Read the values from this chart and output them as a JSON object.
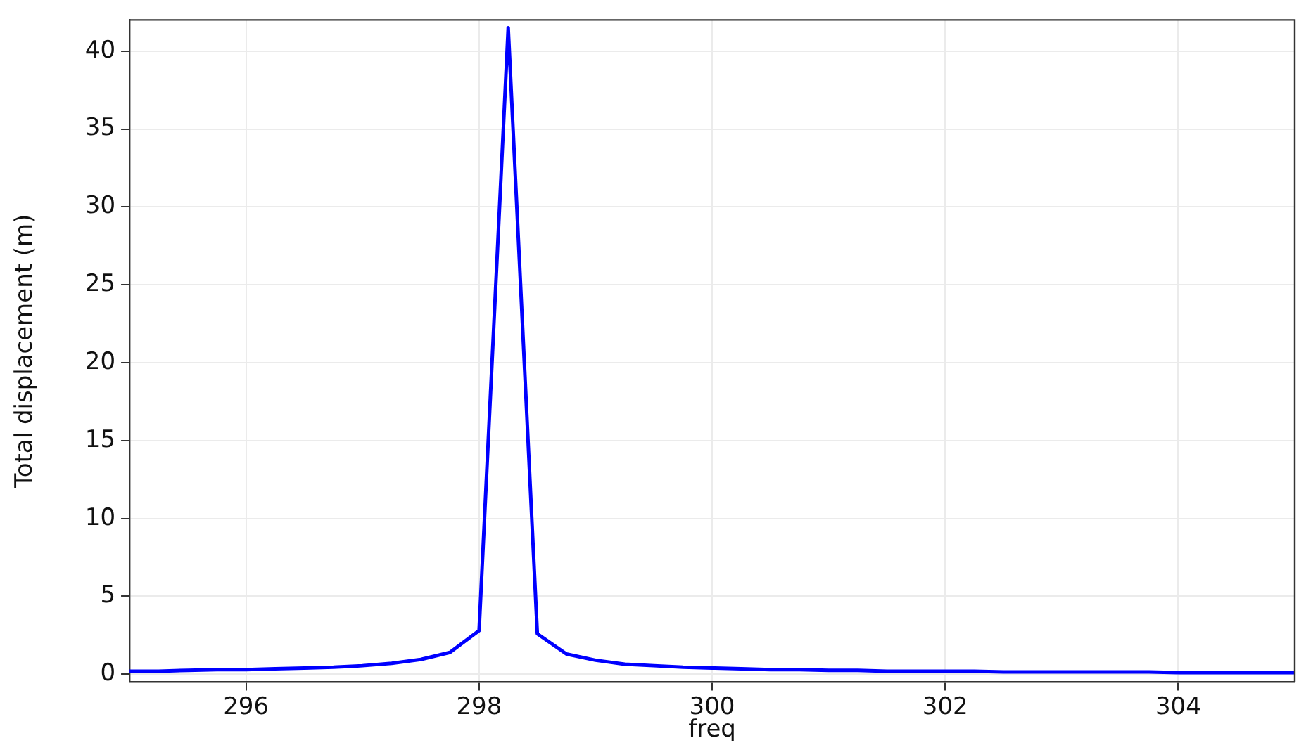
{
  "chart_data": {
    "type": "line",
    "xlabel": "freq",
    "ylabel": "Total displacement (m)",
    "x": [
      295,
      295.25,
      295.5,
      295.75,
      296,
      296.25,
      296.5,
      296.75,
      297,
      297.25,
      297.5,
      297.75,
      298,
      298.25,
      298.5,
      298.75,
      299,
      299.25,
      299.5,
      299.75,
      300,
      300.25,
      300.5,
      300.75,
      301,
      301.25,
      301.5,
      301.75,
      302,
      302.25,
      302.5,
      302.75,
      303,
      303.25,
      303.5,
      303.75,
      304,
      304.25,
      304.5,
      304.75,
      305
    ],
    "series": [
      {
        "color": "#0000ff",
        "values": [
          0.2,
          0.2,
          0.25,
          0.3,
          0.3,
          0.35,
          0.4,
          0.45,
          0.55,
          0.7,
          0.95,
          1.4,
          2.8,
          41.5,
          2.6,
          1.3,
          0.9,
          0.65,
          0.55,
          0.45,
          0.4,
          0.35,
          0.3,
          0.3,
          0.25,
          0.25,
          0.2,
          0.2,
          0.2,
          0.2,
          0.15,
          0.15,
          0.15,
          0.15,
          0.15,
          0.15,
          0.1,
          0.1,
          0.1,
          0.1,
          0.1
        ]
      }
    ],
    "xlim": [
      295,
      305
    ],
    "xticks": [
      296,
      298,
      300,
      302,
      304
    ],
    "ylim": [
      -0.5,
      42
    ],
    "yticks": [
      0,
      5,
      10,
      15,
      20,
      25,
      30,
      35,
      40
    ],
    "grid": true,
    "legend": false,
    "marker": "none",
    "line_style": "solid"
  }
}
